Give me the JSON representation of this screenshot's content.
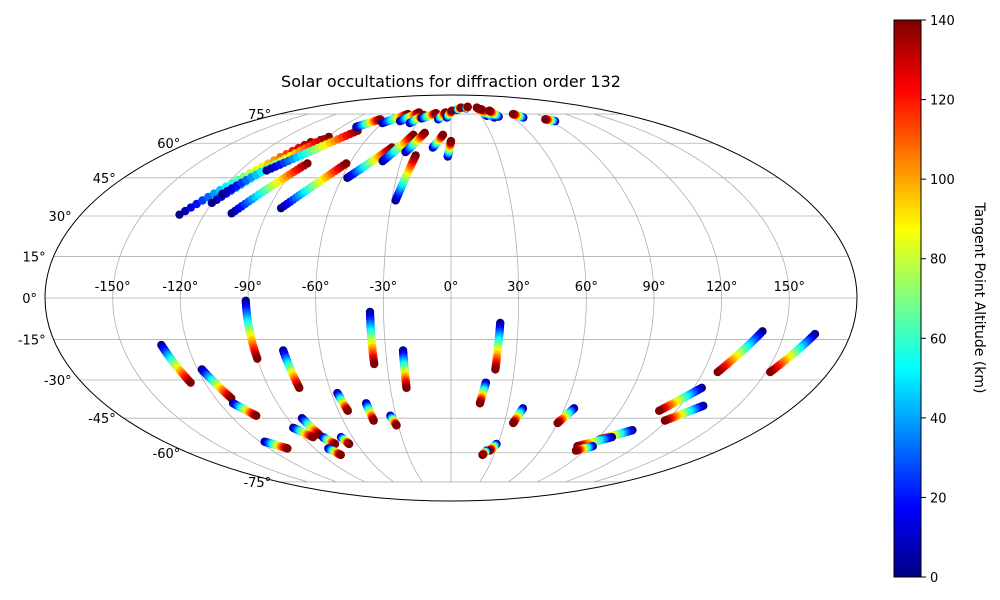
{
  "chart_data": {
    "type": "scatter",
    "projection": "mollweide",
    "title": "Solar occultations for diffraction order 132",
    "lon_tick_labels": [
      {
        "lon": -150,
        "label": "-150°"
      },
      {
        "lon": -120,
        "label": "-120°"
      },
      {
        "lon": -90,
        "label": "-90°"
      },
      {
        "lon": -60,
        "label": "-60°"
      },
      {
        "lon": -30,
        "label": "-30°"
      },
      {
        "lon": 0,
        "label": "0°"
      },
      {
        "lon": 30,
        "label": "30°"
      },
      {
        "lon": 60,
        "label": "60°"
      },
      {
        "lon": 90,
        "label": "90°"
      },
      {
        "lon": 120,
        "label": "120°"
      },
      {
        "lon": 150,
        "label": "150°"
      }
    ],
    "lat_tick_labels": [
      {
        "lat": 75,
        "label": "75°"
      },
      {
        "lat": 60,
        "label": "60°"
      },
      {
        "lat": 45,
        "label": "45°"
      },
      {
        "lat": 30,
        "label": "30°"
      },
      {
        "lat": 15,
        "label": "15°"
      },
      {
        "lat": 0,
        "label": "0°"
      },
      {
        "lat": -15,
        "label": "-15°"
      },
      {
        "lat": -30,
        "label": "-30°"
      },
      {
        "lat": -45,
        "label": "-45°"
      },
      {
        "lat": -60,
        "label": "-60°"
      },
      {
        "lat": -75,
        "label": "-75°"
      }
    ],
    "grid": true,
    "colorbar": {
      "label": "Tangent Point Altitude (km)",
      "range": [
        0,
        140
      ],
      "colormap": "jet",
      "ticks": [
        {
          "value": 0,
          "label": "0"
        },
        {
          "value": 20,
          "label": "20"
        },
        {
          "value": 40,
          "label": "40"
        },
        {
          "value": 60,
          "label": "60"
        },
        {
          "value": 80,
          "label": "80"
        },
        {
          "value": 100,
          "label": "100"
        },
        {
          "value": 120,
          "label": "120"
        },
        {
          "value": 140,
          "label": "140"
        }
      ]
    },
    "tracks": [
      {
        "lon0": -132,
        "lat0": 30.5,
        "lon1": -97,
        "lat1": 60.5
      },
      {
        "lon0": -120,
        "lat0": 35,
        "lon1": -92,
        "lat1": 61.5
      },
      {
        "lon0": -118,
        "lat0": 38.5,
        "lon1": -89,
        "lat1": 63
      },
      {
        "lon0": -107,
        "lat0": 31,
        "lon1": -85,
        "lat1": 51
      },
      {
        "lon0": -84,
        "lat0": 33,
        "lon1": -62,
        "lat1": 51
      },
      {
        "lon0": -105,
        "lat0": 48,
        "lon1": -73,
        "lat1": 66
      },
      {
        "lon0": -57,
        "lat0": 45,
        "lon1": -39,
        "lat1": 58
      },
      {
        "lon0": -41,
        "lat0": 52,
        "lon1": -28,
        "lat1": 64
      },
      {
        "lon0": -29,
        "lat0": 56,
        "lon1": -20,
        "lat1": 65
      },
      {
        "lon0": -28,
        "lat0": 36,
        "lon1": -22,
        "lat1": 54.5
      },
      {
        "lon0": -12,
        "lat0": 58,
        "lon1": -6,
        "lat1": 64
      },
      {
        "lon0": -2,
        "lat0": 54,
        "lon1": 0,
        "lat1": 61
      },
      {
        "lon0": -78,
        "lat0": 68,
        "lon1": -66,
        "lat1": 72
      },
      {
        "lon0": -60,
        "lat0": 70,
        "lon1": -45,
        "lat1": 75
      },
      {
        "lon0": -46,
        "lat0": 71,
        "lon1": -35,
        "lat1": 76
      },
      {
        "lon0": -36,
        "lat0": 70,
        "lon1": -28,
        "lat1": 74.5
      },
      {
        "lon0": -28,
        "lat0": 72.5,
        "lon1": -16,
        "lat1": 75.5
      },
      {
        "lon0": -12,
        "lat0": 72,
        "lon1": -6,
        "lat1": 76
      },
      {
        "lon0": -4,
        "lat0": 73,
        "lon1": 1,
        "lat1": 77
      },
      {
        "lon0": 7,
        "lat0": 77.5,
        "lon1": 13,
        "lat1": 79
      },
      {
        "lon0": 19,
        "lat0": 78.5,
        "lon1": 22,
        "lat1": 79.5
      },
      {
        "lon0": 36,
        "lat0": 74,
        "lon1": 33,
        "lat1": 79
      },
      {
        "lon0": 42,
        "lat0": 73,
        "lon1": 36,
        "lat1": 78
      },
      {
        "lon0": 47,
        "lat0": 73.5,
        "lon1": 44,
        "lat1": 77
      },
      {
        "lon0": 70,
        "lat0": 73,
        "lon1": 65,
        "lat1": 75
      },
      {
        "lon0": 94,
        "lat0": 71,
        "lon1": 88,
        "lat1": 72
      },
      {
        "lon0": -91,
        "lat0": -1,
        "lon1": -90,
        "lat1": -22
      },
      {
        "lon0": -77,
        "lat0": -19,
        "lon1": -75,
        "lat1": -33
      },
      {
        "lon0": -36,
        "lat0": -5,
        "lon1": -36,
        "lat1": -24
      },
      {
        "lon0": -22,
        "lat0": -19,
        "lon1": -22,
        "lat1": -33
      },
      {
        "lon0": 22,
        "lat0": -9,
        "lon1": 21,
        "lat1": -26
      },
      {
        "lon0": 17,
        "lat0": -31,
        "lon1": 15,
        "lat1": -39
      },
      {
        "lon0": -132,
        "lat0": -17,
        "lon1": -127,
        "lat1": -31
      },
      {
        "lon0": -118,
        "lat0": -26,
        "lon1": -112,
        "lat1": -37
      },
      {
        "lon0": -113,
        "lat0": -39,
        "lon1": -106,
        "lat1": -44
      },
      {
        "lon0": -57,
        "lat0": -35,
        "lon1": -55,
        "lat1": -42
      },
      {
        "lon0": -44,
        "lat0": -39,
        "lon1": -43,
        "lat1": -46
      },
      {
        "lon0": -33,
        "lat0": -44,
        "lon1": -31,
        "lat1": -48
      },
      {
        "lon0": -82,
        "lat0": -45,
        "lon1": -79,
        "lat1": -52
      },
      {
        "lon0": -91,
        "lat0": -49,
        "lon1": -84,
        "lat1": -53
      },
      {
        "lon0": -78,
        "lat0": -53,
        "lon1": -74,
        "lat1": -56
      },
      {
        "lon0": -67,
        "lat0": -53,
        "lon1": -65,
        "lat1": -56
      },
      {
        "lon0": -117,
        "lat0": -55,
        "lon1": -108,
        "lat1": -58
      },
      {
        "lon0": -81,
        "lat0": -58,
        "lon1": -77,
        "lat1": -61
      },
      {
        "lon0": 38,
        "lat0": -41,
        "lon1": 35,
        "lat1": -47
      },
      {
        "lon0": 65,
        "lat0": -41,
        "lon1": 60,
        "lat1": -47
      },
      {
        "lon0": 29,
        "lat0": -56,
        "lon1": 26,
        "lat1": -59
      },
      {
        "lon0": 24,
        "lat0": -59,
        "lon1": 22,
        "lat1": -61
      },
      {
        "lon0": 140,
        "lat0": -12,
        "lon1": 127,
        "lat1": -27
      },
      {
        "lon0": 164,
        "lat0": -13,
        "lon1": 152,
        "lat1": -27
      },
      {
        "lon0": 124,
        "lat0": -33,
        "lon1": 111,
        "lat1": -42
      },
      {
        "lon0": 132,
        "lat0": -40,
        "lon1": 119,
        "lat1": -46
      },
      {
        "lon0": 106,
        "lat0": -50,
        "lon1": 92,
        "lat1": -54
      },
      {
        "lon0": 98,
        "lat0": -53,
        "lon1": 82,
        "lat1": -57
      },
      {
        "lon0": 92,
        "lat0": -57,
        "lon1": 84,
        "lat1": -59
      }
    ]
  }
}
